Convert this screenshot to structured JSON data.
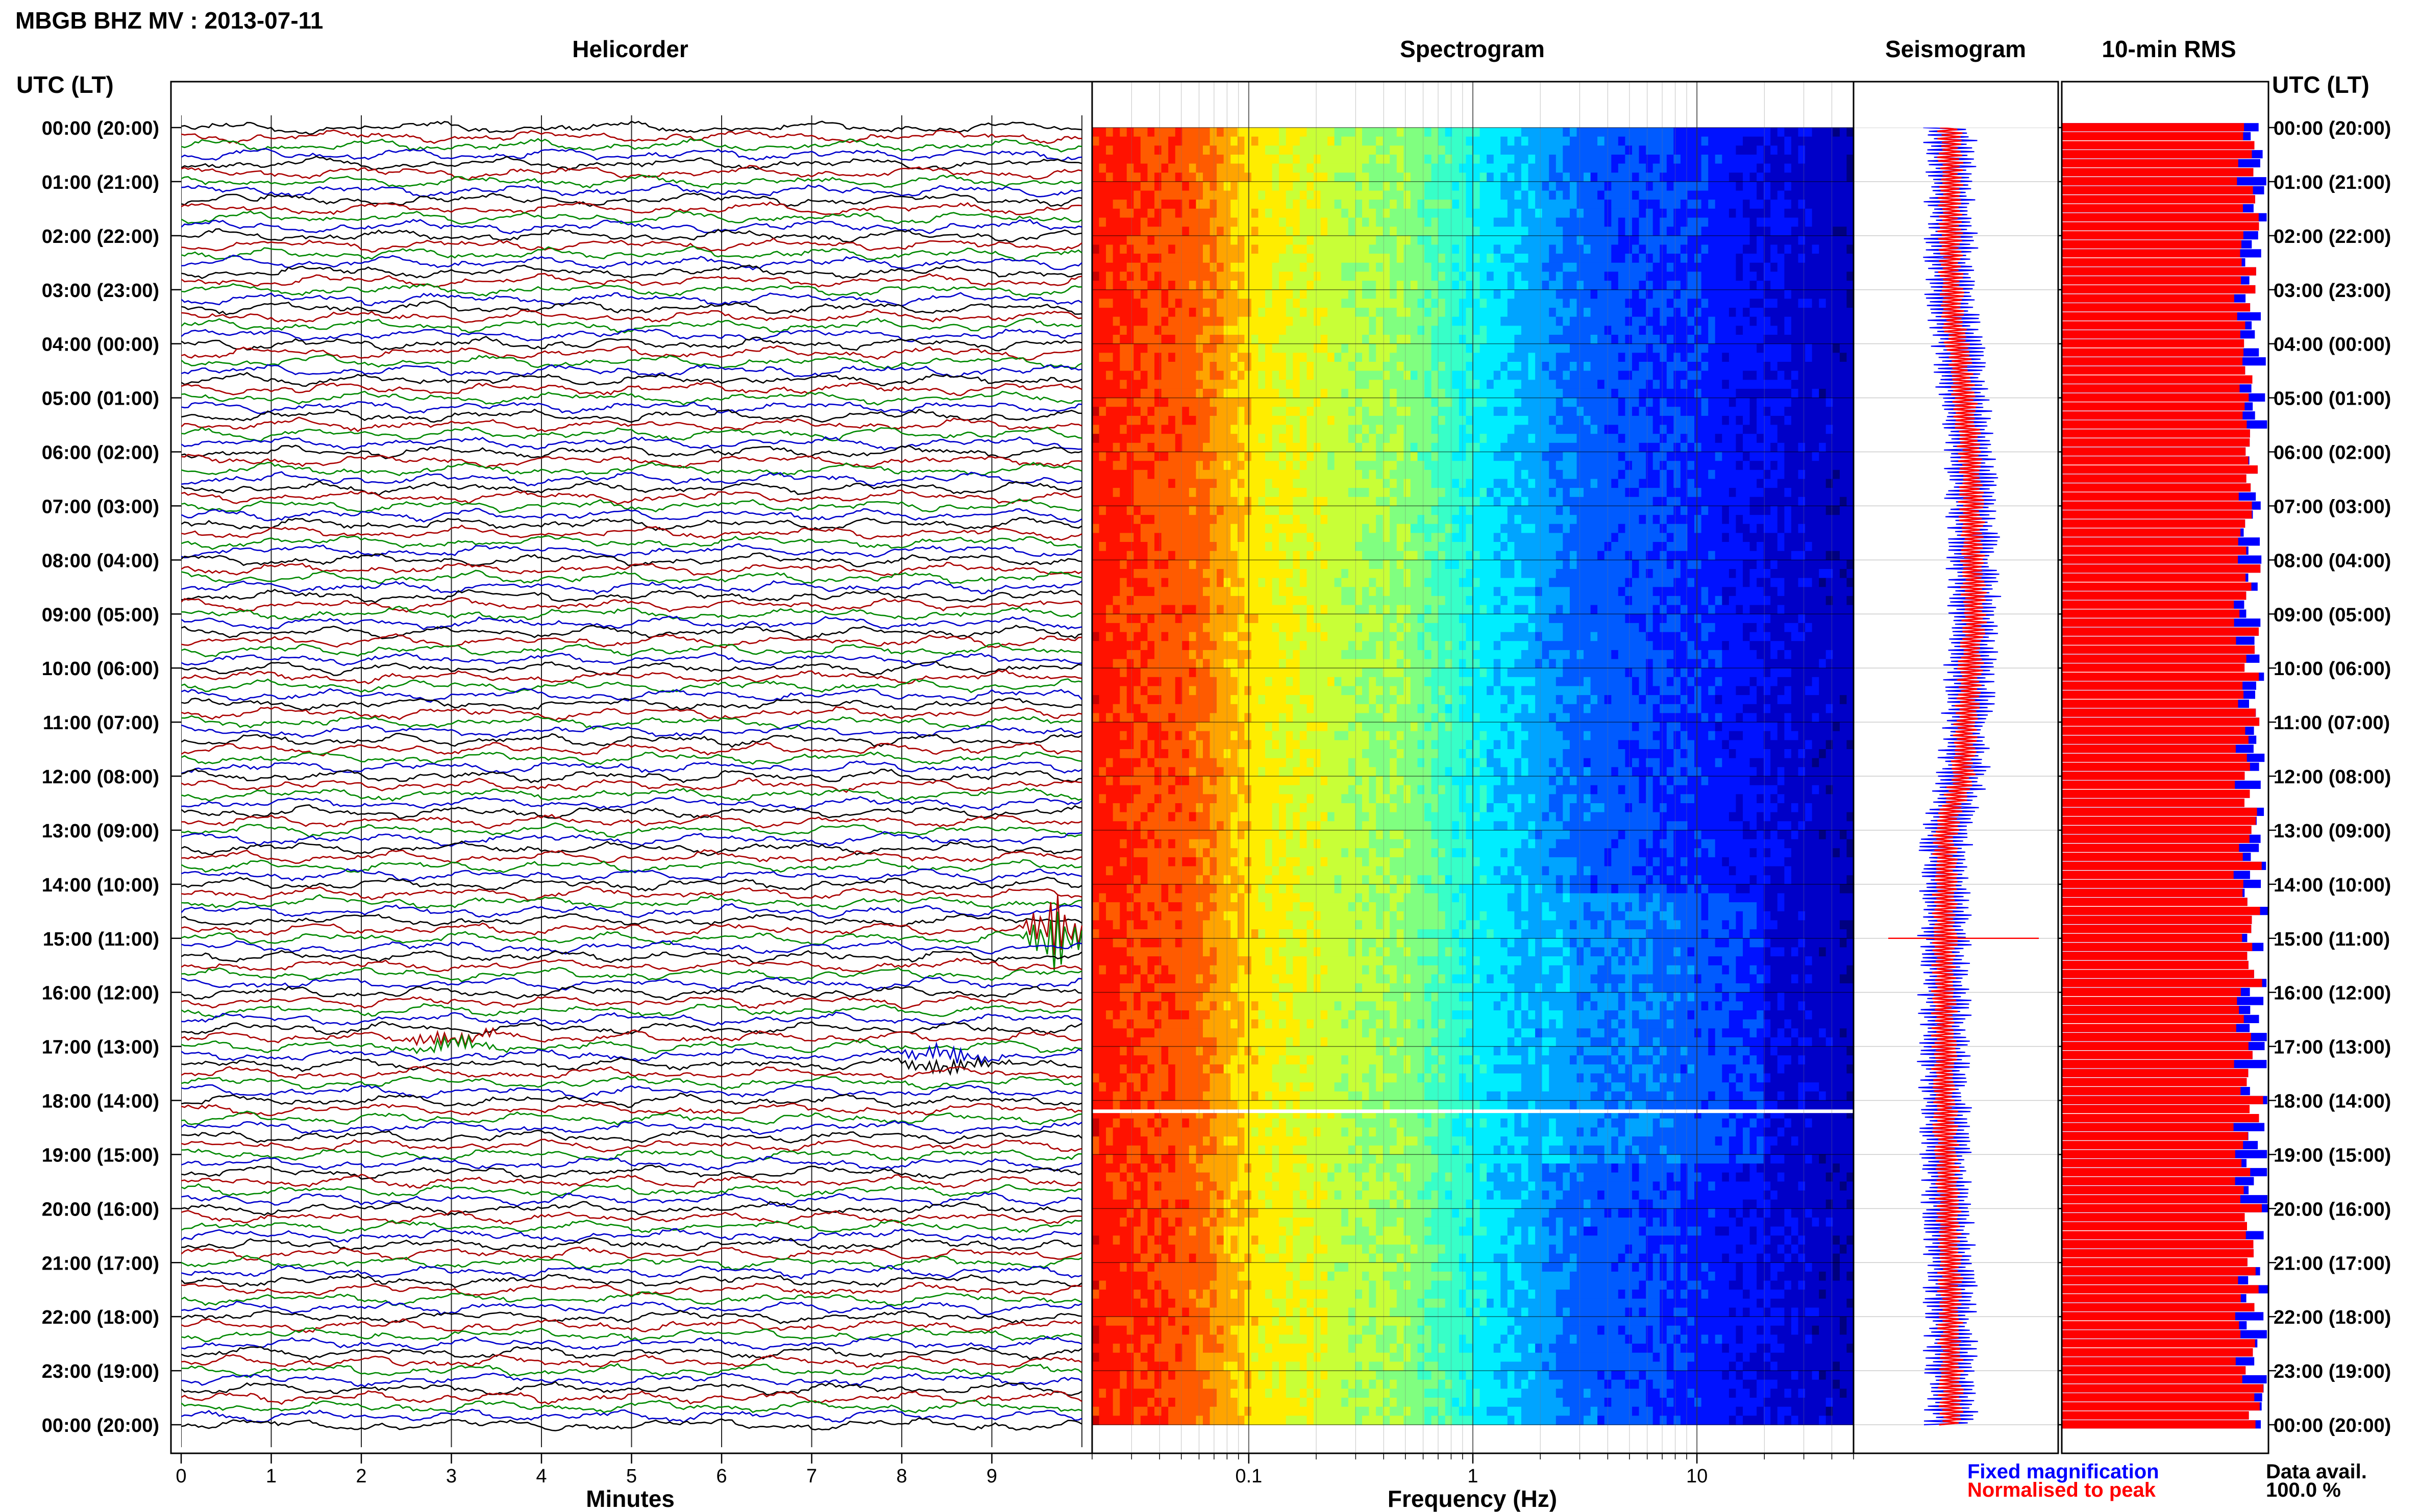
{
  "page_title": "MBGB BHZ MV : 2013-07-11",
  "panels": {
    "helicorder": "Helicorder",
    "spectrogram": "Spectrogram",
    "seismogram": "Seismogram",
    "rms": "10-min RMS"
  },
  "time_axis_header": "UTC (LT)",
  "hour_labels": [
    "00:00 (20:00)",
    "01:00 (21:00)",
    "02:00 (22:00)",
    "03:00 (23:00)",
    "04:00 (00:00)",
    "05:00 (01:00)",
    "06:00 (02:00)",
    "07:00 (03:00)",
    "08:00 (04:00)",
    "09:00 (05:00)",
    "10:00 (06:00)",
    "11:00 (07:00)",
    "12:00 (08:00)",
    "13:00 (09:00)",
    "14:00 (10:00)",
    "15:00 (11:00)",
    "16:00 (12:00)",
    "17:00 (13:00)",
    "18:00 (14:00)",
    "19:00 (15:00)",
    "20:00 (16:00)",
    "21:00 (17:00)",
    "22:00 (18:00)",
    "23:00 (19:00)",
    "00:00 (20:00)"
  ],
  "minutes_axis": {
    "label": "Minutes",
    "ticks": [
      "0",
      "1",
      "2",
      "3",
      "4",
      "5",
      "6",
      "7",
      "8",
      "9"
    ]
  },
  "frequency_axis": {
    "label": "Frequency (Hz)",
    "ticks": [
      "0.1",
      "1",
      "10"
    ]
  },
  "legend": {
    "fixed": "Fixed magnification",
    "normalised": "Normalised to peak"
  },
  "data_avail": {
    "label": "Data avail.",
    "value": "100.0 %"
  },
  "colors": {
    "trace_cycle": [
      "#000000",
      "#aa0000",
      "#008800",
      "#0000cc"
    ],
    "fixed_magnification": "#0000ff",
    "normalised_to_peak": "#ff0000",
    "spectrogram_colormap": "jet"
  },
  "chart_data": [
    {
      "type": "line",
      "name": "helicorder",
      "title": "Helicorder",
      "xlabel": "Minutes",
      "xlim": [
        0,
        10
      ],
      "rows": 144,
      "row_minutes": 10,
      "trace_color_cycle": [
        "black",
        "red",
        "green",
        "blue"
      ],
      "events": [
        {
          "utc": "14:50",
          "minute": 9.7,
          "note": "large amplitude burst"
        },
        {
          "utc": "16:50",
          "minute": 3.0,
          "note": "small event"
        },
        {
          "utc": "17:10",
          "minute": 8.5,
          "note": "small event"
        }
      ]
    },
    {
      "type": "heatmap",
      "name": "spectrogram",
      "title": "Spectrogram",
      "xlabel": "Frequency (Hz)",
      "xscale": "log",
      "xlim": [
        0.02,
        50
      ],
      "colormap": "jet",
      "profile": [
        [
          0.02,
          0.86
        ],
        [
          0.06,
          0.78
        ],
        [
          0.1,
          0.65
        ],
        [
          0.3,
          0.55
        ],
        [
          0.5,
          0.52
        ],
        [
          1,
          0.38
        ],
        [
          2,
          0.28
        ],
        [
          3,
          0.22
        ],
        [
          5,
          0.2
        ],
        [
          10,
          0.16
        ],
        [
          30,
          0.08
        ],
        [
          50,
          0.06
        ]
      ],
      "gap_utc": "18:10"
    },
    {
      "type": "line",
      "name": "seismogram",
      "title": "Seismogram",
      "series": [
        "Fixed magnification",
        "Normalised to peak"
      ],
      "centre_drift": [
        [
          0,
          0.8
        ],
        [
          3,
          0.9
        ],
        [
          6,
          3.6
        ],
        [
          9,
          4.2
        ],
        [
          12,
          2.5
        ],
        [
          13,
          0.2
        ],
        [
          15,
          0
        ],
        [
          18,
          0
        ],
        [
          21,
          0.8
        ],
        [
          24,
          0.9
        ]
      ],
      "peak_utc": "15:00"
    },
    {
      "type": "bar",
      "name": "rms",
      "title": "10-min RMS",
      "orientation": "horizontal",
      "bins": 144,
      "series": [
        "Fixed magnification",
        "Normalised to peak"
      ],
      "normalised_range": [
        0.83,
        0.98
      ]
    }
  ]
}
